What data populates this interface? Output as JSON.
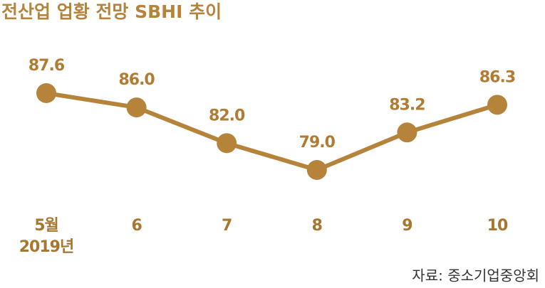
{
  "chart_data": {
    "type": "line",
    "title": "전산업 업황 전망 SBHI 추이",
    "categories": [
      "5월",
      "6",
      "7",
      "8",
      "9",
      "10"
    ],
    "year_label": "2019년",
    "values": [
      87.6,
      86.0,
      82.0,
      79.0,
      83.2,
      86.3
    ],
    "value_labels": [
      "87.6",
      "86.0",
      "82.0",
      "79.0",
      "83.2",
      "86.3"
    ],
    "color": "#b5843a",
    "source": "자료: 중소기업중앙회"
  }
}
